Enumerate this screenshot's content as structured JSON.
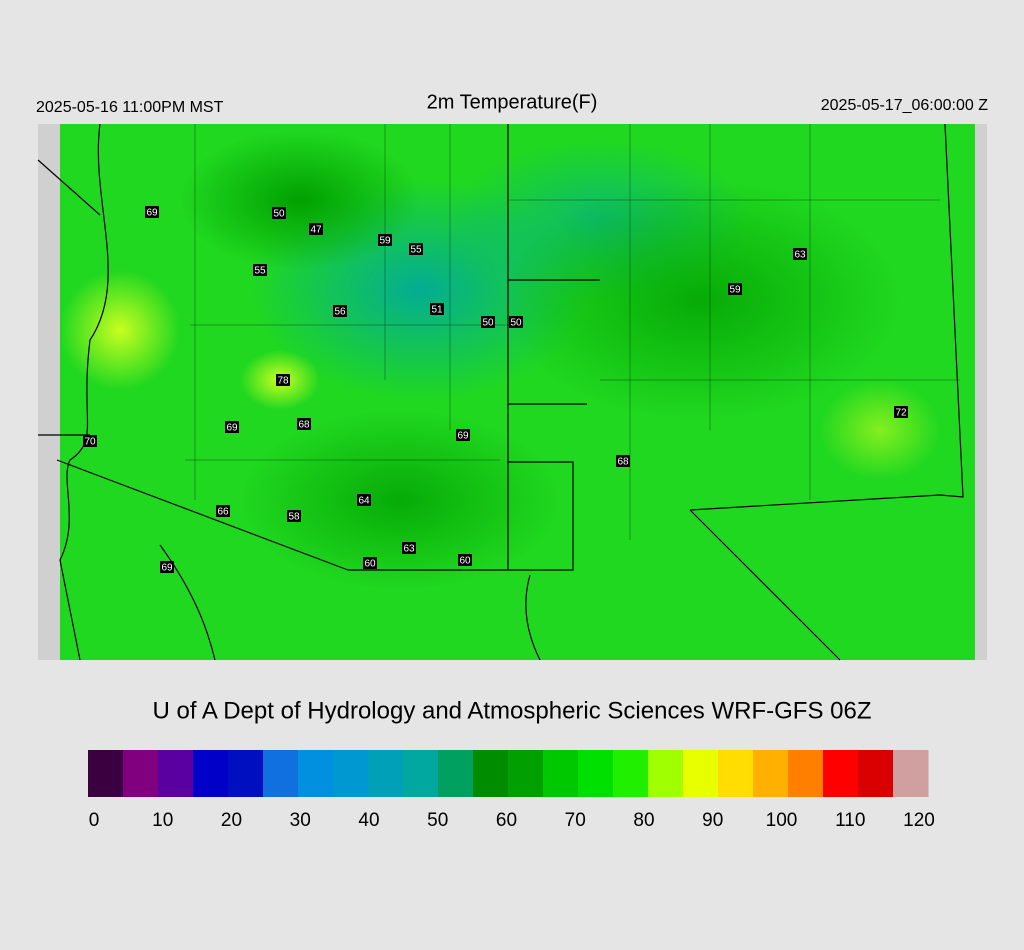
{
  "header": {
    "title": "2m Temperature(F)",
    "local_time": "2025-05-16 11:00PM MST",
    "valid_time": "2025-05-17_06:00:00 Z"
  },
  "map": {
    "stations": [
      69,
      50,
      47,
      59,
      55,
      55,
      63,
      59,
      56,
      51,
      50,
      50,
      78,
      72,
      69,
      68,
      69,
      70,
      68,
      64,
      66,
      58,
      63,
      60,
      60,
      69
    ]
  },
  "footer": {
    "credit": "U of A Dept of Hydrology and Atmospheric Sciences WRF-GFS 06Z"
  },
  "colorbar": {
    "lim": [
      0,
      120
    ],
    "ticks": [
      0,
      10,
      20,
      30,
      40,
      50,
      60,
      70,
      80,
      90,
      100,
      110,
      120
    ],
    "colors": [
      "#3a0040",
      "#800080",
      "#5a00a0",
      "#0000c8",
      "#0010c0",
      "#1070e0",
      "#0090e0",
      "#0098d0",
      "#00a0b8",
      "#00a8a0",
      "#00a060",
      "#008c00",
      "#00a000",
      "#00c800",
      "#00e000",
      "#20f000",
      "#a0ff00",
      "#e8ff00",
      "#ffdd00",
      "#ffb000",
      "#ff8000",
      "#ff0000",
      "#d80000",
      "#d0a0a0"
    ]
  }
}
